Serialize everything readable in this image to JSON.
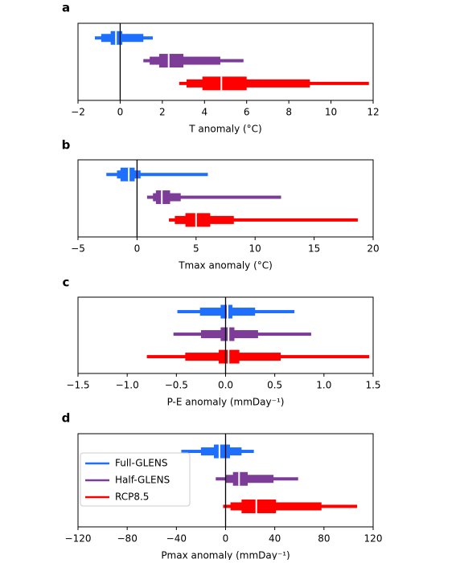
{
  "chart_data": [
    {
      "type": "boxen",
      "panel_label": "a",
      "xlabel": "T anomaly (°C)",
      "xlim": [
        -2,
        12
      ],
      "xticks": [
        {
          "value": -2,
          "label": "−2"
        },
        0,
        2,
        4,
        6,
        8,
        10,
        12
      ],
      "zero_line": true,
      "series": [
        {
          "color": "#1f6fff",
          "median": -0.2,
          "levels": [
            [
              -1.2,
              1.55
            ],
            [
              -0.9,
              1.1
            ],
            [
              -0.45,
              0.1
            ]
          ]
        },
        {
          "color": "#7d3c98",
          "median": 2.3,
          "levels": [
            [
              1.1,
              5.85
            ],
            [
              1.4,
              4.75
            ],
            [
              1.85,
              3.0
            ]
          ]
        },
        {
          "color": "#ff0000",
          "median": 4.8,
          "levels": [
            [
              2.8,
              11.8
            ],
            [
              3.15,
              9.0
            ],
            [
              3.9,
              6.0
            ]
          ]
        }
      ]
    },
    {
      "type": "boxen",
      "panel_label": "b",
      "xlabel": "Tmax anomaly (°C)",
      "xlim": [
        -5,
        20
      ],
      "xticks": [
        {
          "value": -5,
          "label": "−5"
        },
        0,
        5,
        10,
        15,
        20
      ],
      "zero_line": true,
      "series": [
        {
          "color": "#1f6fff",
          "median": -0.7,
          "levels": [
            [
              -2.6,
              6.0
            ],
            [
              -1.7,
              0.3
            ],
            [
              -1.4,
              -0.2
            ]
          ]
        },
        {
          "color": "#7d3c98",
          "median": 2.1,
          "levels": [
            [
              0.85,
              12.2
            ],
            [
              1.35,
              3.7
            ],
            [
              1.6,
              2.8
            ]
          ]
        },
        {
          "color": "#ff0000",
          "median": 5.0,
          "levels": [
            [
              2.7,
              18.7
            ],
            [
              3.2,
              8.2
            ],
            [
              4.1,
              6.2
            ]
          ]
        }
      ]
    },
    {
      "type": "boxen",
      "panel_label": "c",
      "xlabel": "P-E anomaly (mmDay⁻¹)",
      "xlim": [
        -1.5,
        1.5
      ],
      "xticks": [
        {
          "value": -1.5,
          "label": "−1.5"
        },
        {
          "value": -1,
          "label": "−1.0"
        },
        {
          "value": -0.5,
          "label": "−0.5"
        },
        {
          "value": 0,
          "label": "0.0"
        },
        0.5,
        {
          "value": 1,
          "label": "1.0"
        },
        1.5
      ],
      "zero_line": true,
      "series": [
        {
          "color": "#1f6fff",
          "median": 0.02,
          "levels": [
            [
              -0.49,
              0.7
            ],
            [
              -0.26,
              0.3
            ],
            [
              -0.05,
              0.07
            ]
          ]
        },
        {
          "color": "#7d3c98",
          "median": 0.03,
          "levels": [
            [
              -0.53,
              0.87
            ],
            [
              -0.25,
              0.33
            ],
            [
              -0.05,
              0.09
            ]
          ]
        },
        {
          "color": "#ff0000",
          "median": 0.03,
          "levels": [
            [
              -0.8,
              1.46
            ],
            [
              -0.41,
              0.56
            ],
            [
              -0.07,
              0.14
            ]
          ]
        }
      ]
    },
    {
      "type": "boxen",
      "panel_label": "d",
      "xlabel": "Pmax anomaly (mmDay⁻¹)",
      "xlim": [
        -120,
        120
      ],
      "xticks": [
        {
          "value": -120,
          "label": "−120"
        },
        {
          "value": -80,
          "label": "−80"
        },
        {
          "value": -40,
          "label": "−40"
        },
        0,
        40,
        80,
        120
      ],
      "zero_line": true,
      "legend": "center left",
      "series": [
        {
          "name": "Full-GLENS",
          "color": "#1f6fff",
          "median": -5,
          "levels": [
            [
              -36,
              23
            ],
            [
              -20,
              13
            ],
            [
              -9.5,
              3.6
            ]
          ]
        },
        {
          "name": "Half-GLENS",
          "color": "#7d3c98",
          "median": 11,
          "levels": [
            [
              -8,
              59
            ],
            [
              0,
              39
            ],
            [
              6,
              18
            ]
          ]
        },
        {
          "name": "RCP8.5",
          "color": "#ff0000",
          "median": 25,
          "levels": [
            [
              -2,
              107
            ],
            [
              4,
              78
            ],
            [
              13,
              41
            ]
          ]
        }
      ]
    }
  ]
}
